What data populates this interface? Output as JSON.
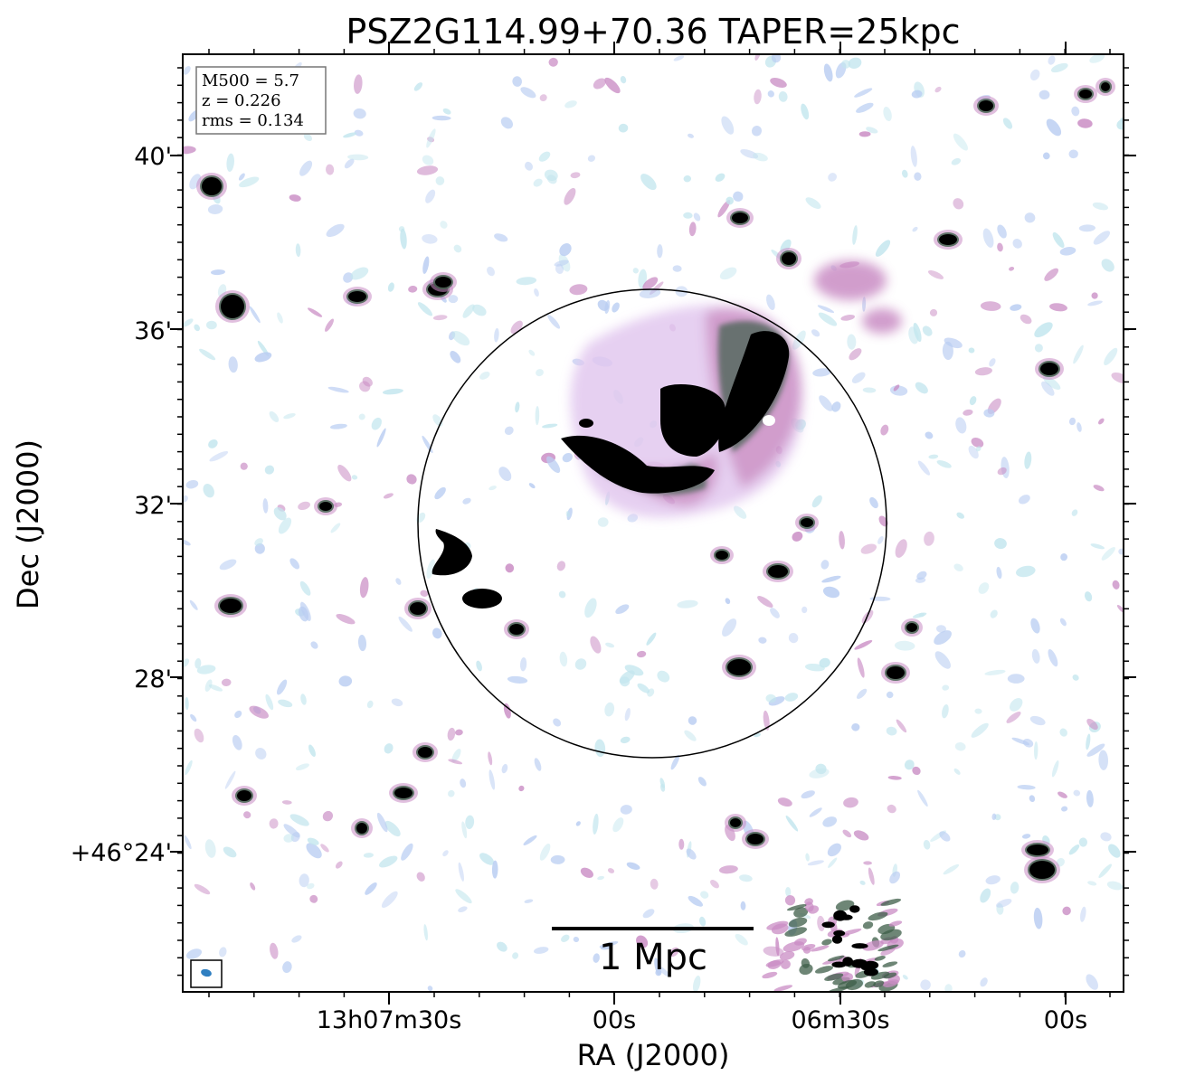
{
  "title": "PSZ2G114.99+70.36 TAPER=25kpc",
  "x_axis": {
    "label": "RA (J2000)",
    "ticks": [
      "13h07m30s",
      "00s",
      "06m30s",
      "00s"
    ]
  },
  "y_axis": {
    "label": "Dec (J2000)",
    "ticks": [
      "40'",
      "36'",
      "32'",
      "28'",
      "+46°24'"
    ]
  },
  "info_box": {
    "lines": [
      "M500 = 5.7",
      "z = 0.226",
      "rms = 0.134"
    ]
  },
  "scale_bar": {
    "label": "1 Mpc"
  },
  "colors": {
    "faint_emission": "#b9cdf2",
    "cyan_noise": "#c3e6ee",
    "magenta_emission": "#c98cc4",
    "green_emission": "#3d5e48",
    "bright_source": "#000000",
    "beam": "#2f7fc1"
  }
}
